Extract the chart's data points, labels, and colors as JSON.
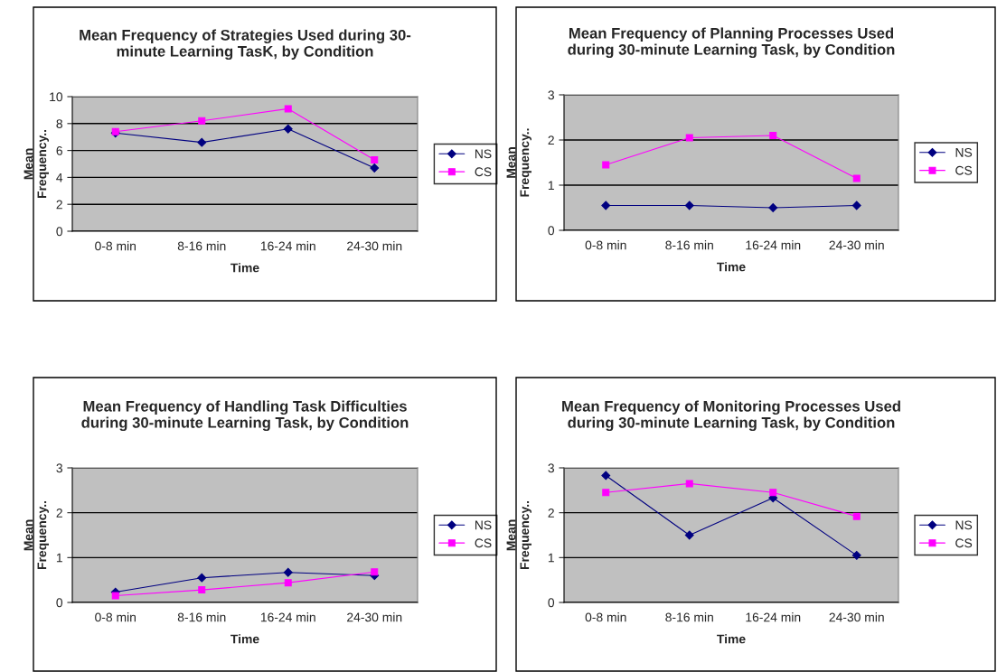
{
  "chart_data": [
    {
      "type": "line",
      "title": "Mean Frequency of Strategies Used during 30-\nminute Learning TasK, by Condition",
      "xlabel": "Time",
      "ylabel": "Mean\nFrequency..",
      "categories": [
        "0-8 min",
        "8-16 min",
        "16-24 min",
        "24-30 min"
      ],
      "ylim": [
        0,
        10
      ],
      "yticks": [
        0,
        2,
        4,
        6,
        8,
        10
      ],
      "grid": "y",
      "legend": "right",
      "series": [
        {
          "name": "NS",
          "color": "#000080",
          "marker": "diamond",
          "values": [
            7.3,
            6.6,
            7.6,
            4.7
          ]
        },
        {
          "name": "CS",
          "color": "#ff00ff",
          "marker": "square",
          "values": [
            7.4,
            8.2,
            9.1,
            5.3
          ]
        }
      ]
    },
    {
      "type": "line",
      "title": "Mean Frequency of Planning Processes Used\nduring 30-minute Learning Task, by Condition",
      "xlabel": "Time",
      "ylabel": "Mean\nFrequency..",
      "categories": [
        "0-8 min",
        "8-16 min",
        "16-24 min",
        "24-30 min"
      ],
      "ylim": [
        0,
        3
      ],
      "yticks": [
        0,
        1,
        2,
        3
      ],
      "grid": "y",
      "legend": "right",
      "series": [
        {
          "name": "NS",
          "color": "#000080",
          "marker": "diamond",
          "values": [
            0.55,
            0.55,
            0.5,
            0.55
          ]
        },
        {
          "name": "CS",
          "color": "#ff00ff",
          "marker": "square",
          "values": [
            1.45,
            2.05,
            2.1,
            1.15
          ]
        }
      ]
    },
    {
      "type": "line",
      "title": "Mean Frequency of Handling Task Difficulties\nduring 30-minute Learning Task, by Condition",
      "xlabel": "Time",
      "ylabel": "Mean\nFrequency..",
      "categories": [
        "0-8 min",
        "8-16 min",
        "16-24 min",
        "24-30 min"
      ],
      "ylim": [
        0,
        3
      ],
      "yticks": [
        0,
        1,
        2,
        3
      ],
      "grid": "y",
      "legend": "right",
      "series": [
        {
          "name": "NS",
          "color": "#000080",
          "marker": "diamond",
          "values": [
            0.23,
            0.55,
            0.67,
            0.6
          ]
        },
        {
          "name": "CS",
          "color": "#ff00ff",
          "marker": "square",
          "values": [
            0.15,
            0.28,
            0.44,
            0.68
          ]
        }
      ]
    },
    {
      "type": "line",
      "title": "Mean Frequency of Monitoring Processes Used\nduring 30-minute Learning Task, by Condition",
      "xlabel": "Time",
      "ylabel": "Mean\nFrequency..",
      "categories": [
        "0-8 min",
        "8-16 min",
        "16-24 min",
        "24-30 min"
      ],
      "ylim": [
        0,
        3
      ],
      "yticks": [
        0,
        1,
        2,
        3
      ],
      "grid": "y",
      "legend": "right",
      "series": [
        {
          "name": "NS",
          "color": "#000080",
          "marker": "diamond",
          "values": [
            2.83,
            1.5,
            2.33,
            1.05
          ]
        },
        {
          "name": "CS",
          "color": "#ff00ff",
          "marker": "square",
          "values": [
            2.45,
            2.65,
            2.45,
            1.92
          ]
        }
      ]
    }
  ]
}
